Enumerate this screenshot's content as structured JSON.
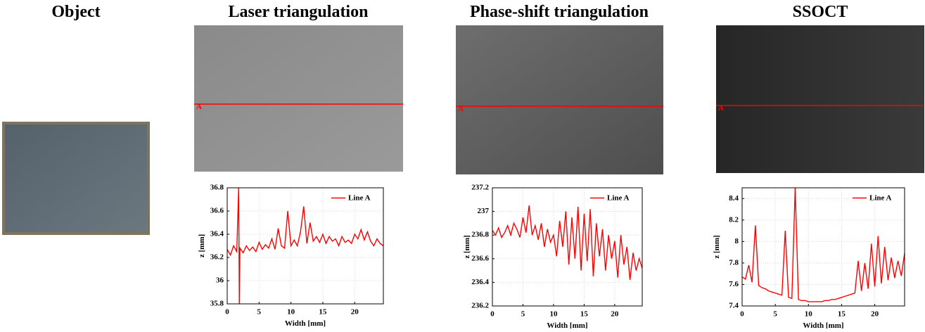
{
  "object_title": "Object",
  "chart_data": [
    {
      "type": "line",
      "title": "Laser triangulation",
      "marker_label": "A",
      "xlabel": "Width [mm]",
      "ylabel": "z [mm]",
      "xlim": [
        0,
        24.5
      ],
      "xticks": [
        0,
        5,
        10,
        15,
        20
      ],
      "ylim": [
        35.8,
        36.8
      ],
      "yticks": [
        35.8,
        36,
        36.2,
        36.4,
        36.6,
        36.8
      ],
      "grid": true,
      "legend": "upper right",
      "x": [
        0,
        0.5,
        1,
        1.5,
        1.8,
        1.9,
        2,
        2.5,
        3,
        3.5,
        4,
        4.5,
        5,
        5.5,
        6,
        6.5,
        7,
        7.5,
        8,
        8.5,
        9,
        9.5,
        10,
        10.5,
        11,
        11.5,
        12,
        12.5,
        13,
        13.5,
        14,
        14.5,
        15,
        15.5,
        16,
        16.5,
        17,
        17.5,
        18,
        18.5,
        19,
        19.5,
        20,
        20.5,
        21,
        21.5,
        22,
        22.5,
        23,
        23.5,
        24,
        24.5
      ],
      "series": [
        {
          "name": "Line A",
          "color": "#ff0000",
          "values": [
            36.27,
            36.22,
            36.3,
            36.25,
            36.8,
            35.8,
            36.28,
            36.24,
            36.3,
            36.26,
            36.29,
            36.25,
            36.33,
            36.27,
            36.31,
            36.28,
            36.36,
            36.27,
            36.45,
            36.3,
            36.28,
            36.6,
            36.3,
            36.35,
            36.3,
            36.42,
            36.64,
            36.32,
            36.5,
            36.34,
            36.38,
            36.33,
            36.4,
            36.32,
            36.38,
            36.34,
            36.36,
            36.3,
            36.38,
            36.33,
            36.35,
            36.32,
            36.4,
            36.36,
            36.44,
            36.35,
            36.42,
            36.34,
            36.3,
            36.36,
            36.32,
            36.3
          ]
        }
      ]
    },
    {
      "type": "line",
      "title": "Phase-shift triangulation",
      "marker_label": "A",
      "xlabel": "Width [mm]",
      "ylabel": "z [mm]",
      "xlim": [
        0,
        24.5
      ],
      "xticks": [
        0,
        5,
        10,
        15,
        20
      ],
      "ylim": [
        236.2,
        237.2
      ],
      "yticks": [
        236.2,
        236.4,
        236.6,
        236.8,
        237,
        237.2
      ],
      "grid": true,
      "legend": "upper right",
      "x": [
        0,
        0.5,
        1,
        1.5,
        2,
        2.5,
        3,
        3.5,
        4,
        4.5,
        5,
        5.5,
        6,
        6.5,
        7,
        7.5,
        8,
        8.5,
        9,
        9.5,
        10,
        10.5,
        11,
        11.5,
        12,
        12.5,
        13,
        13.5,
        14,
        14.5,
        15,
        15.5,
        16,
        16.5,
        17,
        17.5,
        18,
        18.5,
        19,
        19.5,
        20,
        20.5,
        21,
        21.5,
        22,
        22.5,
        23,
        23.5,
        24,
        24.5
      ],
      "series": [
        {
          "name": "Line A",
          "color": "#ff0000",
          "values": [
            236.84,
            236.8,
            236.86,
            236.78,
            236.82,
            236.88,
            236.8,
            236.9,
            236.85,
            236.78,
            236.95,
            236.82,
            237.05,
            236.8,
            236.88,
            236.76,
            236.9,
            236.7,
            236.85,
            236.74,
            236.8,
            236.62,
            236.92,
            236.7,
            237.0,
            236.55,
            236.95,
            236.6,
            237.04,
            236.5,
            236.98,
            236.58,
            237.02,
            236.45,
            236.9,
            236.62,
            236.85,
            236.5,
            236.8,
            236.6,
            236.75,
            236.44,
            236.8,
            236.55,
            236.7,
            236.42,
            236.65,
            236.5,
            236.6,
            236.52
          ]
        }
      ]
    },
    {
      "type": "line",
      "title": "SSOCT",
      "marker_label": "A",
      "xlabel": "Width [mm]",
      "ylabel": "z [mm]",
      "xlim": [
        0,
        24.5
      ],
      "xticks": [
        0,
        5,
        10,
        15,
        20
      ],
      "ylim": [
        7.4,
        8.5
      ],
      "yticks": [
        7.4,
        7.6,
        7.8,
        8,
        8.2,
        8.4
      ],
      "grid": true,
      "legend": "upper right",
      "x": [
        0,
        0.5,
        1,
        1.5,
        2,
        2.5,
        3,
        3.5,
        4,
        4.5,
        5,
        5.5,
        6,
        6.5,
        7,
        7.5,
        8,
        8.5,
        9,
        9.5,
        10,
        10.5,
        11,
        11.5,
        12,
        12.5,
        13,
        13.5,
        14,
        14.5,
        15,
        15.5,
        16,
        16.5,
        17,
        17.5,
        18,
        18.5,
        19,
        19.5,
        20,
        20.5,
        21,
        21.5,
        22,
        22.5,
        23,
        23.5,
        24,
        24.5
      ],
      "series": [
        {
          "name": "Line A",
          "color": "#ff0000",
          "values": [
            7.67,
            7.65,
            7.78,
            7.62,
            8.15,
            7.59,
            7.57,
            7.56,
            7.54,
            7.53,
            7.52,
            7.51,
            7.5,
            8.1,
            7.48,
            7.47,
            8.5,
            7.46,
            7.45,
            7.45,
            7.44,
            7.44,
            7.44,
            7.44,
            7.44,
            7.45,
            7.45,
            7.46,
            7.46,
            7.47,
            7.48,
            7.49,
            7.5,
            7.51,
            7.52,
            7.82,
            7.54,
            7.8,
            7.56,
            7.98,
            7.58,
            8.05,
            7.61,
            7.95,
            7.64,
            7.85,
            7.66,
            7.82,
            7.68,
            7.89
          ]
        }
      ]
    }
  ]
}
